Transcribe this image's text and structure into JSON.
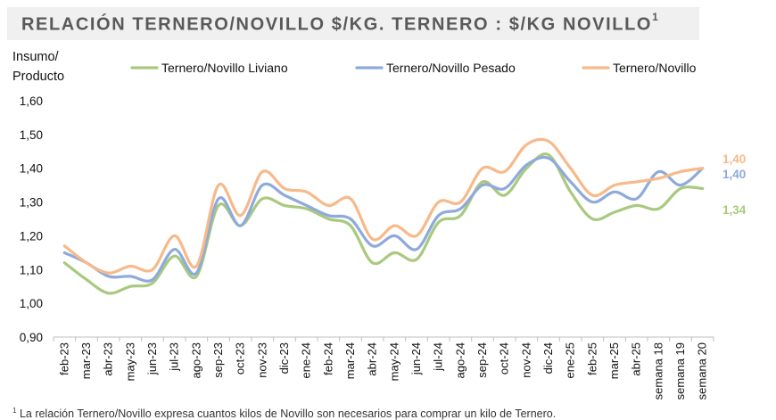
{
  "header": {
    "title": "RELACIÓN TERNERO/NOVILLO $/KG. TERNERO : $/KG NOVILLO",
    "title_superscript": "1"
  },
  "footnote": {
    "marker": "1",
    "text": "La relación Ternero/Novillo expresa cuantos kilos de Novillo son necesarios para comprar un kilo de Ternero."
  },
  "chart_data": {
    "type": "line",
    "ylabel_lines": [
      "Insumo/",
      "Producto"
    ],
    "ylim": [
      0.9,
      1.6
    ],
    "yticks": [
      "0,90",
      "1,00",
      "1,10",
      "1,20",
      "1,30",
      "1,40",
      "1,50",
      "1,60"
    ],
    "grid": false,
    "legend_position": "top",
    "categories": [
      "feb-23",
      "mar-23",
      "abr-23",
      "may-23",
      "jun-23",
      "jul-23",
      "ago-23",
      "sep-23",
      "oct-23",
      "nov-23",
      "dic-23",
      "ene-24",
      "feb-24",
      "mar-24",
      "abr-24",
      "may-24",
      "jun-24",
      "jul-24",
      "ago-24",
      "sep-24",
      "oct-24",
      "nov-24",
      "dic-24",
      "ene-25",
      "feb-25",
      "mar-25",
      "abr-25",
      "semana 18",
      "semana 19",
      "semana 20"
    ],
    "series": [
      {
        "name": "Ternero/Novillo Liviano",
        "color": "#a9c97e",
        "values": [
          1.12,
          1.07,
          1.03,
          1.05,
          1.06,
          1.14,
          1.08,
          1.29,
          1.23,
          1.31,
          1.29,
          1.28,
          1.25,
          1.23,
          1.12,
          1.15,
          1.13,
          1.24,
          1.26,
          1.36,
          1.32,
          1.4,
          1.44,
          1.33,
          1.25,
          1.27,
          1.29,
          1.28,
          1.34,
          1.34
        ],
        "end_label": "1,34",
        "end_label_color": "#a9c97e"
      },
      {
        "name": "Ternero/Novillo Pesado",
        "color": "#8eaadb",
        "values": [
          1.15,
          1.12,
          1.08,
          1.08,
          1.07,
          1.16,
          1.09,
          1.31,
          1.23,
          1.35,
          1.32,
          1.29,
          1.26,
          1.25,
          1.17,
          1.2,
          1.16,
          1.26,
          1.28,
          1.35,
          1.34,
          1.41,
          1.43,
          1.36,
          1.3,
          1.33,
          1.31,
          1.39,
          1.35,
          1.4
        ],
        "end_label": "1,40",
        "end_label_color": "#8eaadb"
      },
      {
        "name": "Ternero/Novillo",
        "color": "#f7b98a",
        "values": [
          1.17,
          1.12,
          1.09,
          1.11,
          1.1,
          1.2,
          1.11,
          1.35,
          1.26,
          1.39,
          1.34,
          1.33,
          1.29,
          1.31,
          1.19,
          1.23,
          1.2,
          1.3,
          1.3,
          1.4,
          1.39,
          1.47,
          1.48,
          1.4,
          1.32,
          1.35,
          1.36,
          1.37,
          1.39,
          1.4
        ],
        "end_label": "1,40",
        "end_label_color": "#f7b98a"
      }
    ]
  }
}
